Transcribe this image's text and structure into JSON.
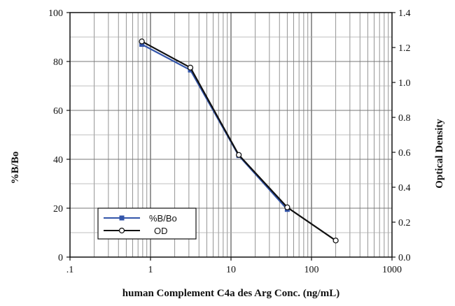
{
  "chart_data": {
    "type": "line",
    "xlabel": "human Complement C4a des Arg Conc. (ng/mL)",
    "ylabel": "%B/Bo",
    "y2label": "Optical Density",
    "xscale": "log",
    "xlim": [
      0.1,
      1000
    ],
    "ylim": [
      0,
      100
    ],
    "y2lim": [
      0,
      1.4
    ],
    "grid": true,
    "legend_position": "bottom-left",
    "x_tick_labels": [
      ".1",
      "1",
      "10",
      "100",
      "1000"
    ],
    "y_tick_labels": [
      "0",
      "20",
      "40",
      "60",
      "80",
      "100"
    ],
    "y2_tick_labels": [
      "0.0",
      "0.2",
      "0.4",
      "0.6",
      "0.8",
      "1.0",
      "1.2",
      "1.4"
    ],
    "series": [
      {
        "name": "%B/Bo",
        "axis": "left",
        "color": "#3355aa",
        "marker": "filled-square",
        "x": [
          0.78,
          3.13,
          12.5,
          50
        ],
        "y": [
          87,
          76.5,
          41.5,
          19.5
        ]
      },
      {
        "name": "OD",
        "axis": "right",
        "color": "#111111",
        "marker": "open-circle",
        "x": [
          0.78,
          3.13,
          12.5,
          50,
          200
        ],
        "y": [
          1.235,
          1.085,
          0.585,
          0.285,
          0.095
        ]
      }
    ]
  }
}
